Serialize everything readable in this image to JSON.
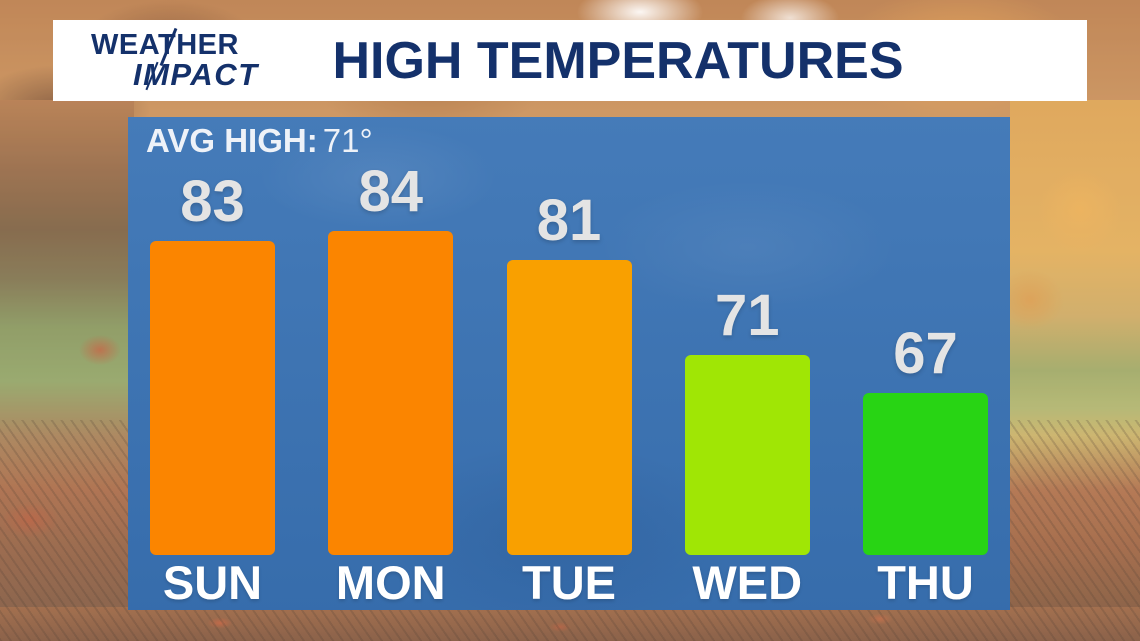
{
  "header": {
    "logo_line1": "WEATHER",
    "logo_line2": "IMPACT",
    "title": "HIGH TEMPERATURES"
  },
  "chart_data": {
    "type": "bar",
    "title": "HIGH TEMPERATURES",
    "annotation": {
      "label": "AVG HIGH:",
      "value": "71°"
    },
    "categories": [
      "SUN",
      "MON",
      "TUE",
      "WED",
      "THU"
    ],
    "values": [
      83,
      84,
      81,
      71,
      67
    ],
    "bar_colors": [
      "#fb8500",
      "#fb8500",
      "#f9a000",
      "#a0e605",
      "#28d414"
    ],
    "ylim": [
      50,
      96
    ],
    "grid": false,
    "legend": false,
    "value_label_color": "#e4e4e4",
    "category_label_color": "#ffffff",
    "panel_color": "#3b74b5",
    "navy_text_color": "#14316b",
    "banner_color": "#ffffff"
  }
}
